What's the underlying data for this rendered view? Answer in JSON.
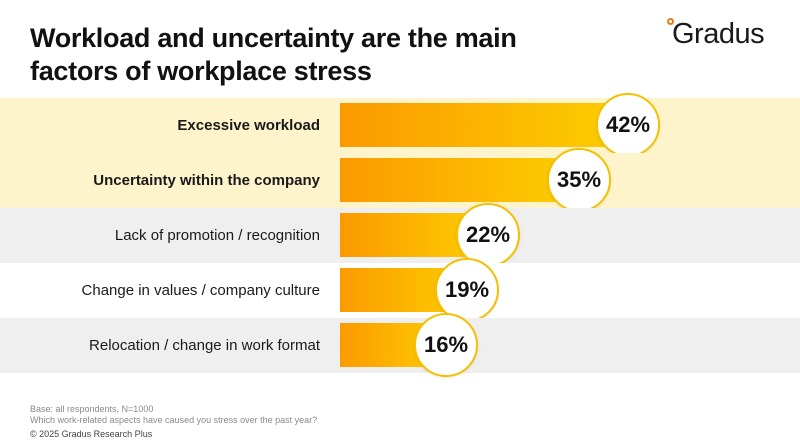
{
  "title": "Workload and uncertainty are the main factors of workplace stress",
  "brand": {
    "name": "Gradus",
    "accent": "#f07a12"
  },
  "colors": {
    "highlight_band": "#fdf4cc",
    "gray_band": "#efefef",
    "white_band": "#ffffff",
    "bar_start": "#fb9a00",
    "bar_end": "#fdd000",
    "bubble_border": "#f5c000"
  },
  "chart_data": {
    "type": "bar",
    "orientation": "horizontal",
    "unit": "%",
    "categories": [
      "Excessive workload",
      "Uncertainty within the company",
      "Lack of promotion / recognition",
      "Change in values / company culture",
      "Relocation / change in work format"
    ],
    "values": [
      42,
      35,
      22,
      19,
      16
    ],
    "value_labels": [
      "42%",
      "35%",
      "22%",
      "19%",
      "16%"
    ],
    "highlighted": [
      true,
      true,
      false,
      false,
      false
    ],
    "xlim": [
      0,
      50
    ],
    "grid": false,
    "legend": "none"
  },
  "footer": {
    "base": "Base: all respondents, N=1000",
    "question": "Which work-related aspects have caused you stress over the past year?",
    "copyright": "© 2025 Gradus Research Plus"
  }
}
